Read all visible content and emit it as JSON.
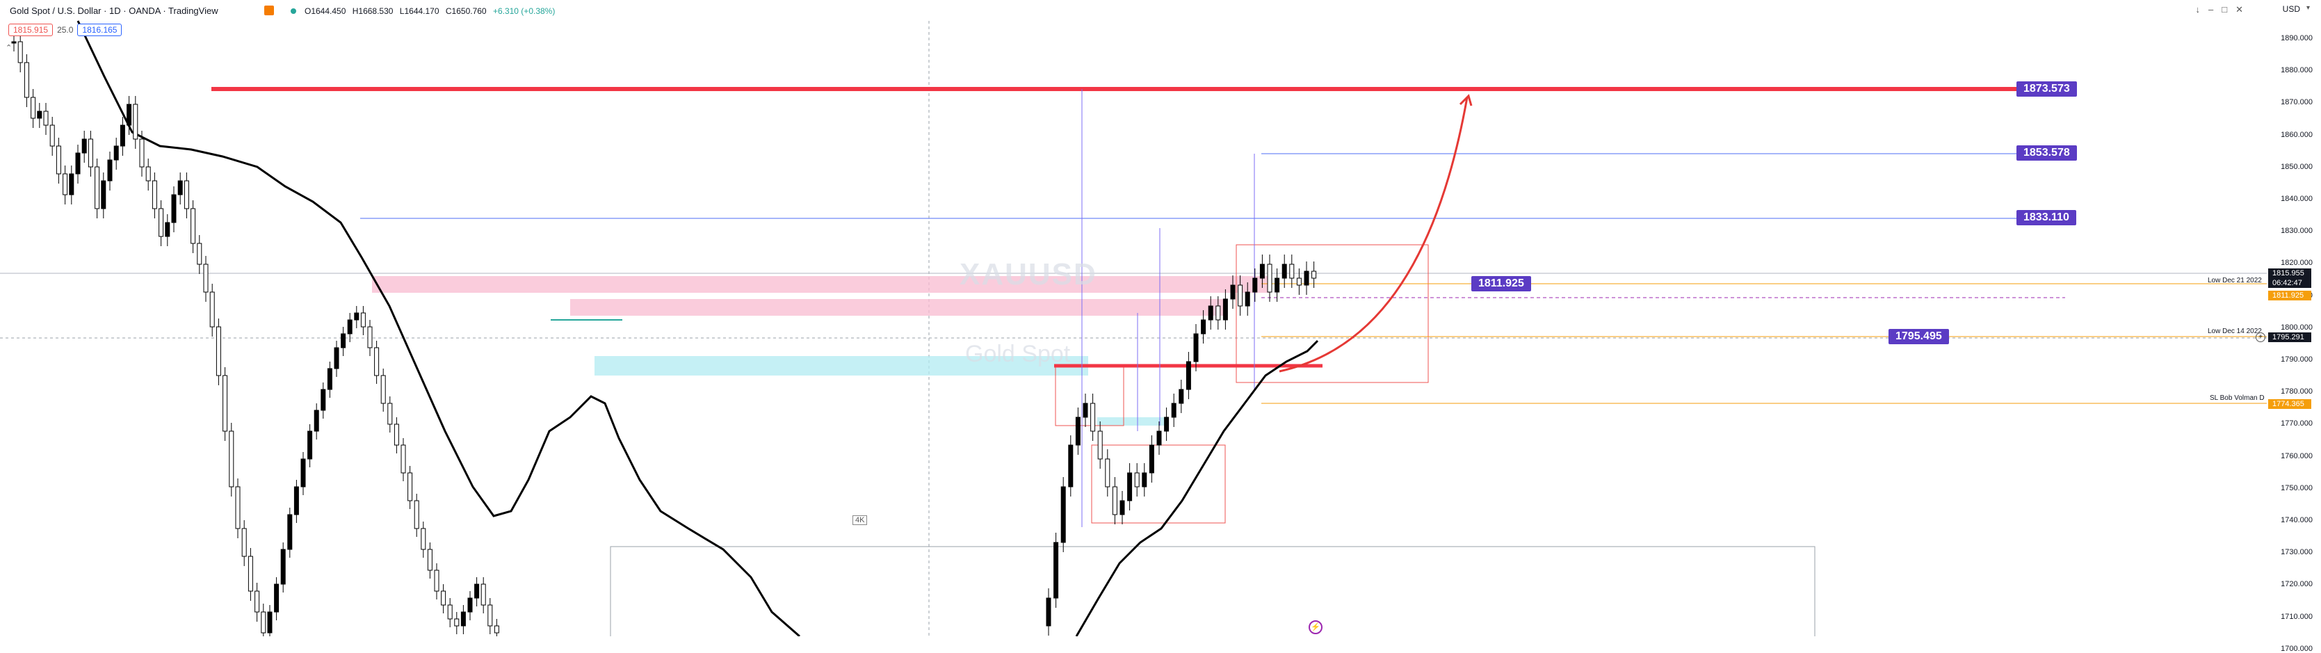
{
  "header": {
    "symbol_title": "Gold Spot / U.S. Dollar · 1D · OANDA · TradingView",
    "ohlc": {
      "open": "O1644.450",
      "high": "H1668.530",
      "low": "L1644.170",
      "close": "C1650.760",
      "change": "+6.310 (+0.38%)"
    },
    "bid": "1815.915",
    "spread": "25.0",
    "ask": "1816.165",
    "currency": "USD",
    "status_color": "#26a69a"
  },
  "watermark": {
    "ticker": "XAUUSD",
    "name": "Gold Spot"
  },
  "axis": {
    "ticks": [
      "1890.000",
      "1880.000",
      "1870.000",
      "1860.000",
      "1850.000",
      "1840.000",
      "1830.000",
      "1820.000",
      "1810.000",
      "1800.000",
      "1790.000",
      "1780.000",
      "1770.000",
      "1760.000",
      "1750.000",
      "1740.000",
      "1730.000",
      "1720.000",
      "1710.000",
      "1700.000"
    ]
  },
  "price_tags": {
    "current_price": "1815.955",
    "countdown": "06:42:47",
    "level_1811": "1811.925",
    "level_1795": "1795.291",
    "level_1774": "1774.365"
  },
  "level_labels": {
    "tag_1873": "1873.573",
    "tag_1853": "1853.578",
    "tag_1833": "1833.110",
    "tag_1811": "1811.925",
    "tag_1795": "1795.495",
    "low_dec21": "Low Dec 21 2022",
    "low_dec14": "Low Dec 14 2022",
    "sl_label": "SL Bob Volman D"
  },
  "annotations": {
    "box_label": "4K"
  },
  "colors": {
    "tag_purple": "#5b3cc4",
    "resistance_red": "#f23645",
    "pink_zone": "#f8bbd0",
    "cyan_zone": "#b2ebf2",
    "orange_line": "#f59e0b",
    "blue_line": "#4c6ef5"
  }
}
